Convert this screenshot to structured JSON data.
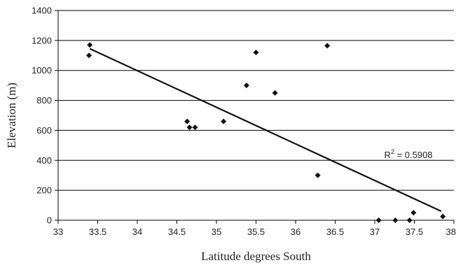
{
  "chart_data": {
    "type": "scatter",
    "xlabel": "Latitude degrees South",
    "ylabel": "Elevation (m)",
    "xlim": [
      33,
      38
    ],
    "ylim": [
      0,
      1400
    ],
    "x_ticks": [
      "33",
      "33.5",
      "34",
      "34.5",
      "35",
      "35.5",
      "36",
      "36.5",
      "37",
      "37.5",
      "38"
    ],
    "y_ticks": [
      "0",
      "200",
      "400",
      "600",
      "800",
      "1000",
      "1200",
      "1400"
    ],
    "grid": "horizontal",
    "legend": "none",
    "series": [
      {
        "points": [
          {
            "x": 33.4,
            "y": 1170
          },
          {
            "x": 33.39,
            "y": 1100
          },
          {
            "x": 34.63,
            "y": 660
          },
          {
            "x": 34.66,
            "y": 620
          },
          {
            "x": 34.73,
            "y": 620
          },
          {
            "x": 35.09,
            "y": 660
          },
          {
            "x": 35.38,
            "y": 900
          },
          {
            "x": 35.5,
            "y": 1120
          },
          {
            "x": 35.74,
            "y": 850
          },
          {
            "x": 36.28,
            "y": 300
          },
          {
            "x": 36.4,
            "y": 1165
          },
          {
            "x": 37.05,
            "y": 0
          },
          {
            "x": 37.26,
            "y": 0
          },
          {
            "x": 37.44,
            "y": 0
          },
          {
            "x": 37.49,
            "y": 50
          },
          {
            "x": 37.86,
            "y": 25
          }
        ]
      }
    ],
    "trendline": {
      "x": [
        33.4,
        37.84
      ],
      "y": [
        1145,
        60
      ]
    },
    "annotation": {
      "label": "R",
      "superscript": "2",
      "value_text": " = 0.5908",
      "x": 37.12,
      "y": 430
    },
    "colors": {
      "marker": "#111111",
      "line": "#111111",
      "grid": "#000000",
      "axis": "#000000"
    }
  }
}
